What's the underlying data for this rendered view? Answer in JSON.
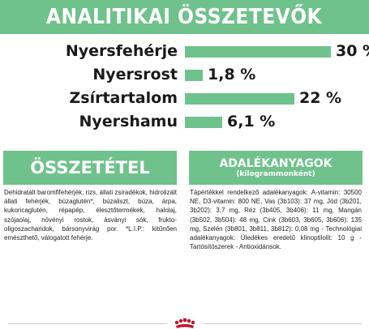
{
  "analytical": {
    "title": "ANALITIKAI ÖSSZETEVŐK",
    "rows": [
      {
        "label": "Nyersfehérje",
        "value": "30 %",
        "fraction": 0.3
      },
      {
        "label": "Nyersrost",
        "value": "1,8 %",
        "fraction": 0.018
      },
      {
        "label": "Zsírtartalom",
        "value": "22 %",
        "fraction": 0.22
      },
      {
        "label": "Nyershamu",
        "value": "6,1 %",
        "fraction": 0.061
      }
    ]
  },
  "composition": {
    "title": "ÖSSZETÉTEL",
    "text": "Dehidratált baromfifehérjék, rizs, állati zsiradékok, hidrolizált állati fehérjék, búzaglutén*, búzaliszt, búza, árpa, kukoricaglutén, répapép, élesztőtermékek, halolaj, szójaolaj, növényi rostok, ásványi sók, frukto-oligoszacharidok, bársonyvirág por. *L.I.P.: kitűnően emészthető, válogatott fehérje."
  },
  "additives": {
    "title": "ADALÉKANYAGOK",
    "subtitle": "(kilogrammonként)",
    "text": "Tápértékkel rendelkező adalékanyagok: A-vitamin: 30500 NE, D3-vitamin: 800 NE, Vas (3b103): 37 mg, Jód (3b201, 3b202): 3,7 mg, Réz (3b405, 3b406): 11 mg, Mangán (3b502, 3b504): 48 mg, Cink (3b603, 3b605, 3b606): 135 mg, Szelén (3b801, 3b811, 3b812): 0,08 mg - Technológiai adalékanyagok: Üledékes eredetű klinoptilolit: 10 g - Tartósítószerek - Antioxidánsok."
  },
  "colors": {
    "accent": "#6fc28b",
    "brand_red": "#c8102e"
  },
  "icons": {
    "footer": "royal-canin-crown-icon"
  }
}
